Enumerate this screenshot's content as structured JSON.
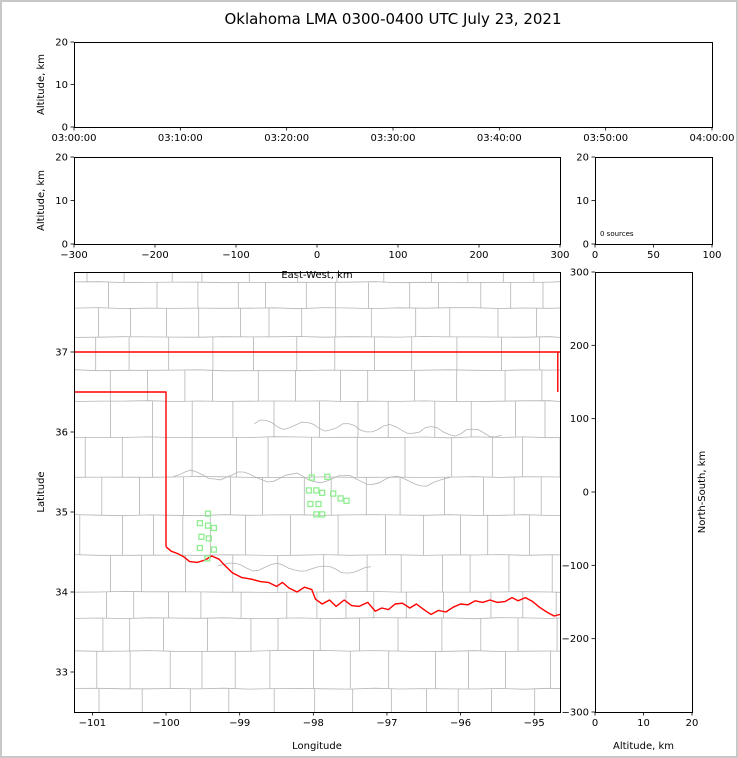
{
  "chart_data": {
    "type": "composite",
    "title": "Oklahoma LMA 0300-0400 UTC July 23, 2021",
    "panels": [
      {
        "name": "time-height",
        "type": "scatter",
        "ylabel": "Altitude, km",
        "x_tick_labels": [
          "03:00:00",
          "03:10:00",
          "03:20:00",
          "03:30:00",
          "03:40:00",
          "03:50:00",
          "04:00:00"
        ],
        "ylim": [
          0,
          20
        ],
        "yticks": [
          0,
          10,
          20
        ],
        "points": []
      },
      {
        "name": "ew-height",
        "type": "scatter",
        "xlabel": "East-West, km",
        "ylabel": "Altitude, km",
        "xlim": [
          -300,
          300
        ],
        "xticks": [
          -300,
          -200,
          -100,
          0,
          100,
          200,
          300
        ],
        "ylim": [
          0,
          20
        ],
        "yticks": [
          0,
          10,
          20
        ],
        "points": []
      },
      {
        "name": "source-histogram",
        "type": "bar",
        "xlim": [
          0,
          100
        ],
        "xticks": [
          0,
          50,
          100
        ],
        "ylim": [
          0,
          20
        ],
        "yticks": [
          0,
          10,
          20
        ],
        "annotation": "0 sources",
        "values": []
      },
      {
        "name": "plan-view",
        "type": "scatter",
        "xlabel": "Longitude",
        "ylabel": "Latitude",
        "xlim": [
          -101.25,
          -94.65
        ],
        "xticks": [
          -101,
          -100,
          -99,
          -98,
          -97,
          -96,
          -95
        ],
        "ylim": [
          32.5,
          38.0
        ],
        "yticks": [
          33,
          34,
          35,
          36,
          37
        ],
        "colors": {
          "state_border": "#ff0000",
          "county_border": "#b4b4b4",
          "station_marker": "#90ee90"
        },
        "stations": [
          [
            -98.02,
            35.43
          ],
          [
            -97.81,
            35.44
          ],
          [
            -98.06,
            35.27
          ],
          [
            -97.96,
            35.27
          ],
          [
            -97.88,
            35.24
          ],
          [
            -97.73,
            35.23
          ],
          [
            -97.63,
            35.17
          ],
          [
            -97.55,
            35.14
          ],
          [
            -98.04,
            35.1
          ],
          [
            -97.93,
            35.1
          ],
          [
            -97.96,
            34.97
          ],
          [
            -97.88,
            34.97
          ],
          [
            -99.43,
            34.98
          ],
          [
            -99.54,
            34.86
          ],
          [
            -99.43,
            34.83
          ],
          [
            -99.35,
            34.8
          ],
          [
            -99.52,
            34.69
          ],
          [
            -99.42,
            34.67
          ],
          [
            -99.54,
            34.55
          ],
          [
            -99.35,
            34.53
          ],
          [
            -99.44,
            34.42
          ]
        ],
        "state_borders": [
          {
            "name": "kansas-oklahoma-line",
            "points": [
              [
                -101.25,
                37.0
              ],
              [
                -94.65,
                37.0
              ]
            ]
          },
          {
            "name": "panhandle-border",
            "points": [
              [
                -101.25,
                36.5
              ],
              [
                -100.0,
                36.5
              ],
              [
                -100.0,
                34.565
              ]
            ]
          },
          {
            "name": "east-border",
            "points": [
              [
                -94.68,
                37.0
              ],
              [
                -94.68,
                36.5
              ]
            ]
          },
          {
            "name": "red-river-border",
            "points": [
              [
                -100.0,
                34.565
              ],
              [
                -99.93,
                34.51
              ],
              [
                -99.84,
                34.48
              ],
              [
                -99.76,
                34.44
              ],
              [
                -99.68,
                34.38
              ],
              [
                -99.58,
                34.37
              ],
              [
                -99.47,
                34.4
              ],
              [
                -99.38,
                34.45
              ],
              [
                -99.28,
                34.41
              ],
              [
                -99.21,
                34.34
              ],
              [
                -99.1,
                34.24
              ],
              [
                -98.97,
                34.18
              ],
              [
                -98.84,
                34.16
              ],
              [
                -98.72,
                34.13
              ],
              [
                -98.61,
                34.12
              ],
              [
                -98.5,
                34.07
              ],
              [
                -98.42,
                34.12
              ],
              [
                -98.33,
                34.05
              ],
              [
                -98.22,
                34.0
              ],
              [
                -98.12,
                34.06
              ],
              [
                -98.02,
                34.03
              ],
              [
                -97.97,
                33.91
              ],
              [
                -97.88,
                33.85
              ],
              [
                -97.78,
                33.9
              ],
              [
                -97.69,
                33.82
              ],
              [
                -97.58,
                33.9
              ],
              [
                -97.48,
                33.83
              ],
              [
                -97.38,
                33.82
              ],
              [
                -97.26,
                33.87
              ],
              [
                -97.16,
                33.76
              ],
              [
                -97.07,
                33.8
              ],
              [
                -96.98,
                33.78
              ],
              [
                -96.89,
                33.85
              ],
              [
                -96.79,
                33.86
              ],
              [
                -96.69,
                33.8
              ],
              [
                -96.6,
                33.85
              ],
              [
                -96.5,
                33.78
              ],
              [
                -96.4,
                33.72
              ],
              [
                -96.3,
                33.77
              ],
              [
                -96.2,
                33.75
              ],
              [
                -96.1,
                33.81
              ],
              [
                -96.0,
                33.85
              ],
              [
                -95.9,
                33.84
              ],
              [
                -95.8,
                33.89
              ],
              [
                -95.7,
                33.87
              ],
              [
                -95.6,
                33.9
              ],
              [
                -95.5,
                33.87
              ],
              [
                -95.4,
                33.88
              ],
              [
                -95.3,
                33.93
              ],
              [
                -95.22,
                33.89
              ],
              [
                -95.12,
                33.93
              ],
              [
                -95.02,
                33.88
              ],
              [
                -94.93,
                33.81
              ],
              [
                -94.83,
                33.75
              ],
              [
                -94.73,
                33.7
              ],
              [
                -94.65,
                33.72
              ]
            ]
          }
        ]
      },
      {
        "name": "ns-height",
        "type": "scatter",
        "xlabel": "Altitude, km",
        "ylabel": "North-South, km",
        "xlim": [
          0,
          20
        ],
        "xticks": [
          0,
          10,
          20
        ],
        "ylim": [
          -300,
          300
        ],
        "yticks": [
          -300,
          -200,
          -100,
          0,
          100,
          200,
          300
        ],
        "points": []
      }
    ]
  }
}
